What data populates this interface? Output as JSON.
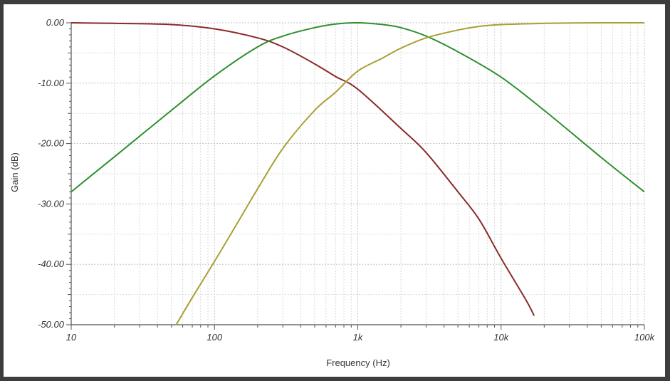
{
  "chart_data": {
    "type": "line",
    "title": "",
    "xlabel": "Frequency (Hz)",
    "ylabel": "Gain (dB)",
    "x_scale": "log",
    "xlim": [
      10,
      100000
    ],
    "ylim": [
      -50,
      0
    ],
    "x_tick_labels": [
      "10",
      "100",
      "1k",
      "10k",
      "100k"
    ],
    "x_tick_values": [
      10,
      100,
      1000,
      10000,
      100000
    ],
    "y_tick_labels": [
      "0.00",
      "-10.00",
      "-20.00",
      "-30.00",
      "-40.00",
      "-50.00"
    ],
    "y_tick_values": [
      0,
      -10,
      -20,
      -30,
      -40,
      -50
    ],
    "grid": true,
    "series": [
      {
        "color": "#8b2a2a",
        "x": [
          10,
          20,
          50,
          100,
          200,
          300,
          500,
          700,
          1000,
          2000,
          3000,
          5000,
          7000,
          10000,
          15000,
          17000
        ],
        "y": [
          0,
          -0.1,
          -0.3,
          -1.0,
          -2.5,
          -4.0,
          -6.8,
          -8.9,
          -11.0,
          -17.5,
          -21.5,
          -28.0,
          -32.5,
          -39.0,
          -46.0,
          -48.5
        ]
      },
      {
        "color": "#2f8f2f",
        "x": [
          10,
          20,
          50,
          100,
          200,
          300,
          500,
          700,
          1000,
          1500,
          2000,
          3000,
          5000,
          10000,
          20000,
          50000,
          100000
        ],
        "y": [
          -28.0,
          -22.2,
          -14.5,
          -8.8,
          -4.0,
          -2.2,
          -0.8,
          -0.2,
          0,
          -0.3,
          -0.8,
          -2.2,
          -4.8,
          -9.0,
          -14.5,
          -22.3,
          -28.0
        ]
      },
      {
        "color": "#a8a032",
        "x": [
          54,
          70,
          100,
          150,
          200,
          300,
          500,
          700,
          1000,
          1500,
          2000,
          3000,
          5000,
          7000,
          10000,
          20000,
          50000,
          100000
        ],
        "y": [
          -50.0,
          -45.5,
          -39.5,
          -32.5,
          -27.5,
          -20.8,
          -14.5,
          -11.5,
          -8.0,
          -5.8,
          -4.2,
          -2.5,
          -1.2,
          -0.6,
          -0.3,
          -0.1,
          0,
          0
        ]
      }
    ]
  }
}
